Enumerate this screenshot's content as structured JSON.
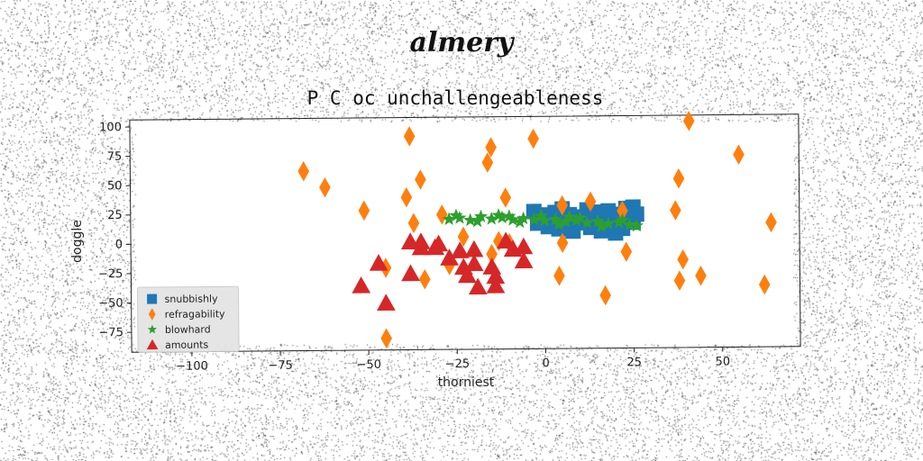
{
  "figure": {
    "supertitle": "almery"
  },
  "chart_data": {
    "type": "scatter",
    "title": "P C oc unchallengeableness",
    "xlabel": "thorniest",
    "ylabel": "doggle",
    "xlim": [
      -117,
      72
    ],
    "ylim": [
      -92,
      106
    ],
    "xticks": [
      -100,
      -75,
      -50,
      -25,
      0,
      25,
      50
    ],
    "yticks": [
      100,
      75,
      50,
      25,
      0,
      -25,
      -50,
      -75
    ],
    "xtick_labels": [
      "−100",
      "−75",
      "−50",
      "−25",
      "0",
      "25",
      "50"
    ],
    "ytick_labels": [
      "100",
      "75",
      "50",
      "25",
      "0",
      "−25",
      "−50",
      "−75"
    ],
    "grid": false,
    "legend_position": "lower-left",
    "series": [
      {
        "name": "snubbishly",
        "marker": "square",
        "color": "#1f77b4",
        "points": [
          [
            -3,
            25
          ],
          [
            -1,
            22
          ],
          [
            1,
            20
          ],
          [
            3,
            24
          ],
          [
            5,
            18
          ],
          [
            7,
            22
          ],
          [
            9,
            20
          ],
          [
            11,
            17
          ],
          [
            13,
            21
          ],
          [
            15,
            24
          ],
          [
            17,
            19
          ],
          [
            19,
            22
          ],
          [
            21,
            17
          ],
          [
            23,
            27
          ],
          [
            25,
            28
          ],
          [
            26,
            22
          ],
          [
            -2,
            15
          ],
          [
            1,
            12
          ],
          [
            4,
            10
          ],
          [
            7,
            13
          ],
          [
            10,
            15
          ],
          [
            13,
            11
          ],
          [
            16,
            8
          ],
          [
            19,
            12
          ],
          [
            22,
            10
          ],
          [
            25,
            15
          ],
          [
            5,
            27
          ],
          [
            12,
            26
          ],
          [
            18,
            25
          ],
          [
            0,
            18
          ],
          [
            8,
            8
          ],
          [
            20,
            6
          ],
          [
            24,
            20
          ]
        ]
      },
      {
        "name": "refragability",
        "marker": "diamond",
        "color": "#ff7f0e",
        "points": [
          [
            41,
            101
          ],
          [
            -38,
            90
          ],
          [
            -15,
            80
          ],
          [
            -3,
            87
          ],
          [
            -16,
            67
          ],
          [
            -68,
            61
          ],
          [
            -62,
            47
          ],
          [
            55,
            72
          ],
          [
            -35,
            53
          ],
          [
            38,
            52
          ],
          [
            -51,
            27
          ],
          [
            -39,
            38
          ],
          [
            -11,
            37
          ],
          [
            5,
            30
          ],
          [
            13,
            33
          ],
          [
            22,
            25
          ],
          [
            37,
            25
          ],
          [
            -37,
            16
          ],
          [
            -29,
            23
          ],
          [
            -23,
            4
          ],
          [
            -13,
            0
          ],
          [
            5,
            -2
          ],
          [
            23,
            -10
          ],
          [
            -15,
            -11
          ],
          [
            -27,
            -20
          ],
          [
            -45,
            -22
          ],
          [
            -34,
            -32
          ],
          [
            4,
            -30
          ],
          [
            39,
            -17
          ],
          [
            38,
            -35
          ],
          [
            44,
            -31
          ],
          [
            62,
            -39
          ],
          [
            17,
            -47
          ],
          [
            64,
            14
          ],
          [
            -45,
            -82
          ],
          [
            -10,
            -2
          ]
        ]
      },
      {
        "name": "blowhard",
        "marker": "star",
        "color": "#2ca02c",
        "points": [
          [
            -27,
            19
          ],
          [
            -24,
            20
          ],
          [
            -21,
            18
          ],
          [
            -18,
            21
          ],
          [
            -15,
            19
          ],
          [
            -12,
            20
          ],
          [
            -9,
            18
          ],
          [
            -6,
            19
          ],
          [
            -3,
            18
          ],
          [
            0,
            17
          ],
          [
            3,
            18
          ],
          [
            6,
            16
          ],
          [
            9,
            17
          ],
          [
            12,
            15
          ],
          [
            15,
            16
          ],
          [
            18,
            14
          ],
          [
            21,
            15
          ],
          [
            24,
            13
          ],
          [
            -25,
            22
          ],
          [
            -19,
            17
          ],
          [
            -13,
            22
          ],
          [
            -7,
            16
          ],
          [
            -1,
            21
          ],
          [
            4,
            14
          ],
          [
            10,
            19
          ],
          [
            16,
            12
          ],
          [
            22,
            17
          ],
          [
            26,
            12
          ],
          [
            -10,
            21
          ],
          [
            7,
            20
          ]
        ]
      },
      {
        "name": "amounts",
        "marker": "triangle",
        "color": "#d62728",
        "points": [
          [
            -47,
            -18
          ],
          [
            -52,
            -37
          ],
          [
            -45,
            -52
          ],
          [
            -38,
            -27
          ],
          [
            -38,
            0
          ],
          [
            -35,
            -5
          ],
          [
            -35,
            0
          ],
          [
            -31,
            -5
          ],
          [
            -30,
            -2
          ],
          [
            -27,
            -14
          ],
          [
            -24,
            -8
          ],
          [
            -23,
            -22
          ],
          [
            -22,
            -29
          ],
          [
            -20,
            -7
          ],
          [
            -20,
            -19
          ],
          [
            -19,
            -39
          ],
          [
            -15,
            -22
          ],
          [
            -14,
            -30
          ],
          [
            -14,
            -38
          ],
          [
            -11,
            0
          ],
          [
            -9,
            -7
          ],
          [
            -6,
            -5
          ],
          [
            -6,
            -17
          ]
        ]
      }
    ]
  }
}
